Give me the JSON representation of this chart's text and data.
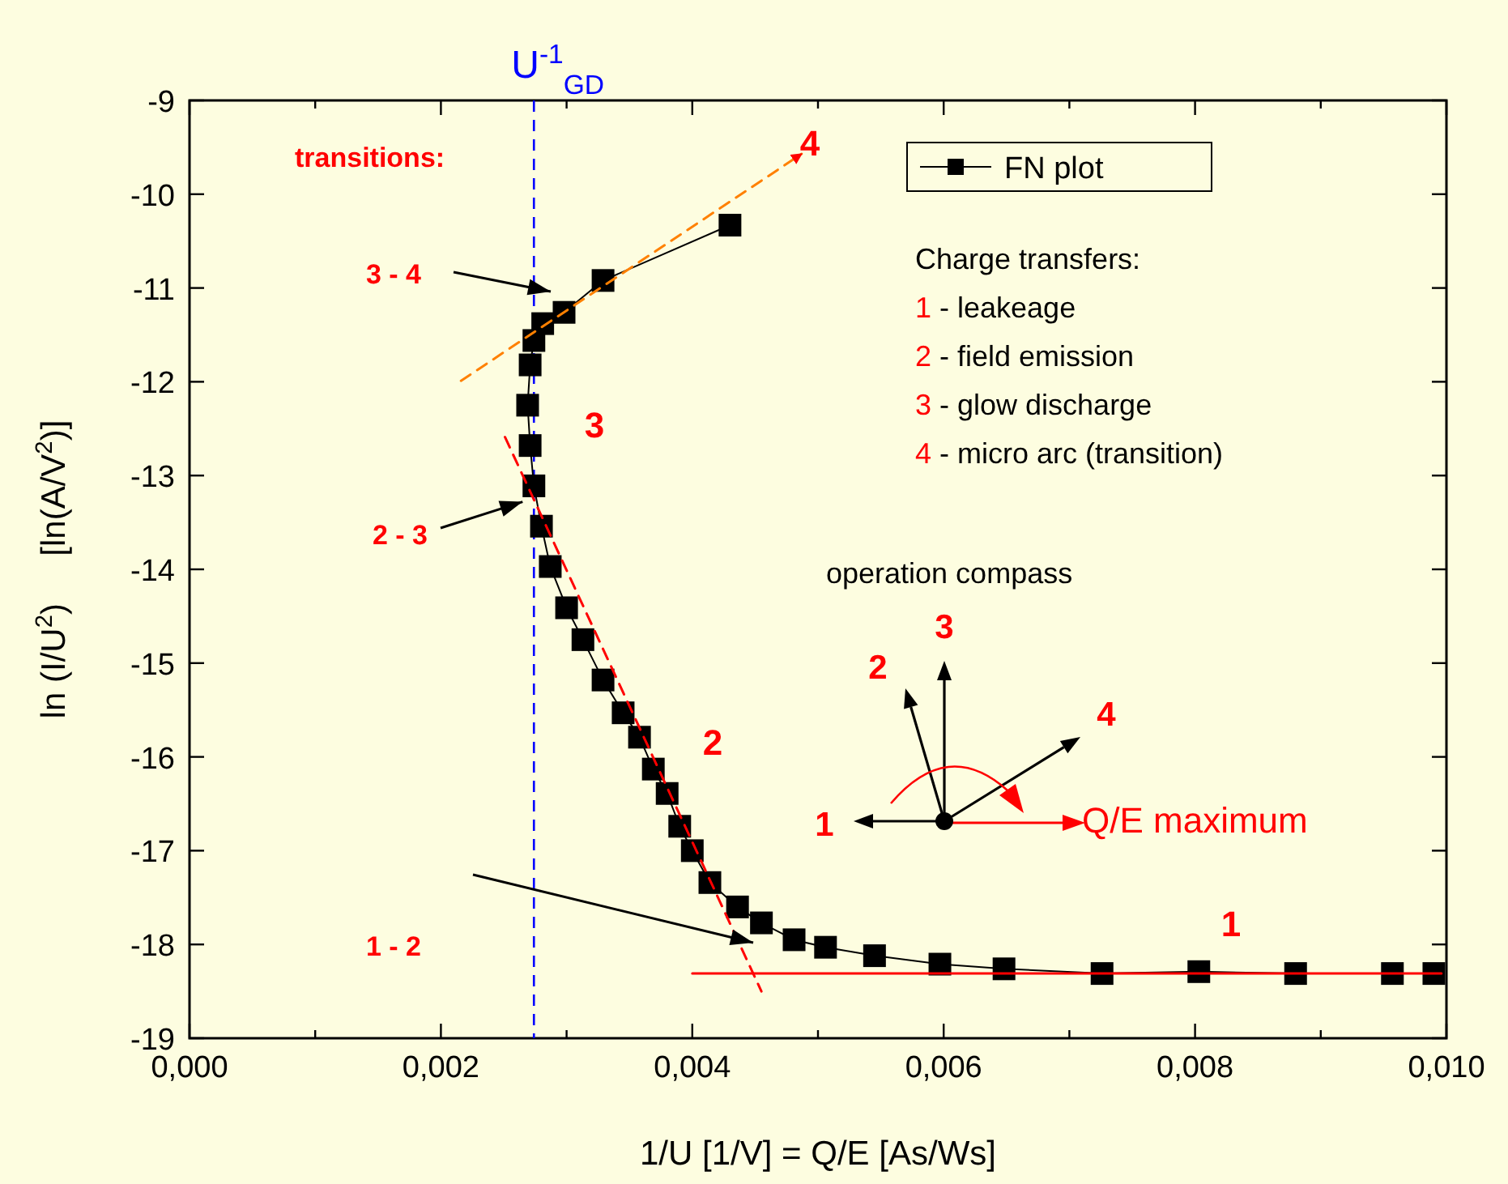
{
  "chart_data": {
    "type": "line",
    "xlabel": "1/U [1/V] = Q/E [As/Ws]",
    "ylabel": "ln (I/U$^{2}$)     [ln(A/V$^{2}$)]",
    "xlim": [
      0,
      0.01
    ],
    "ylim": [
      -19,
      -9
    ],
    "xticks": [
      {
        "value": 0,
        "label": "0,000"
      },
      {
        "value": 0.001,
        "label": null
      },
      {
        "value": 0.002,
        "label": "0,002"
      },
      {
        "value": 0.003,
        "label": null
      },
      {
        "value": 0.004,
        "label": "0,004"
      },
      {
        "value": 0.005,
        "label": null
      },
      {
        "value": 0.006,
        "label": "0,006"
      },
      {
        "value": 0.007,
        "label": null
      },
      {
        "value": 0.008,
        "label": "0,008"
      },
      {
        "value": 0.009,
        "label": null
      },
      {
        "value": 0.01,
        "label": "0,010"
      }
    ],
    "yticks": [
      -19,
      -18,
      -17,
      -16,
      -15,
      -14,
      -13,
      -12,
      -11,
      -10,
      -9
    ],
    "legend": "top right",
    "grid": false,
    "series": [
      {
        "name": "FN plot",
        "type": "line",
        "marker": "square",
        "color": "#000000",
        "x": [
          0.0043,
          0.00329,
          0.00298,
          0.00281,
          0.00274,
          0.00271,
          0.00269,
          0.00271,
          0.00274,
          0.0028,
          0.00287,
          0.003,
          0.00313,
          0.00329,
          0.00345,
          0.00358,
          0.00369,
          0.0038,
          0.0039,
          0.004,
          0.00414,
          0.00436,
          0.00455,
          0.00481,
          0.00506,
          0.00545,
          0.00597,
          0.00648,
          0.00726,
          0.00803,
          0.0088,
          0.00957,
          0.0099
        ],
        "values": [
          -10.33,
          -10.92,
          -11.26,
          -11.38,
          -11.56,
          -11.82,
          -12.25,
          -12.68,
          -13.11,
          -13.54,
          -13.97,
          -14.41,
          -14.75,
          -15.18,
          -15.53,
          -15.79,
          -16.13,
          -16.39,
          -16.74,
          -17.0,
          -17.34,
          -17.6,
          -17.77,
          -17.95,
          -18.03,
          -18.12,
          -18.21,
          -18.26,
          -18.31,
          -18.29,
          -18.31,
          -18.31,
          -18.31
        ]
      },
      {
        "type": "line",
        "color": "#ff8000",
        "line_style": "dashed",
        "marker": "none",
        "x": [
          0.00216,
          0.00487
        ],
        "values": [
          -11.99,
          -9.57
        ]
      },
      {
        "type": "line",
        "color": "#ff0000",
        "line_style": "dashed",
        "marker": "none",
        "x": [
          0.00251,
          0.00455
        ],
        "values": [
          -12.59,
          -18.5
        ]
      },
      {
        "type": "line",
        "color": "#ff0000",
        "line_style": "solid",
        "marker": "none",
        "x": [
          0.004,
          0.00996
        ],
        "values": [
          -18.31,
          -18.31
        ]
      }
    ],
    "ref_lines": [
      {
        "axis": "x",
        "value": 0.00274,
        "label": "U$^{-1}$$_{GD}$",
        "color": "#0000ff",
        "line_style": "dashed"
      }
    ],
    "annotations": [
      "3 - 4",
      {
        "text": "2 - 3",
        "x": 0.00265,
        "y": -13.28
      },
      "1 - 2",
      "1",
      "2",
      "3",
      "4",
      "transitions:",
      "Charge transfers:",
      "1 - leakeage",
      "2 - field emission",
      "3 - glow discharge",
      "4 - micro arc (transition)",
      "operation compass",
      "1",
      "2",
      "3",
      "4",
      "Q/E maximum"
    ]
  }
}
